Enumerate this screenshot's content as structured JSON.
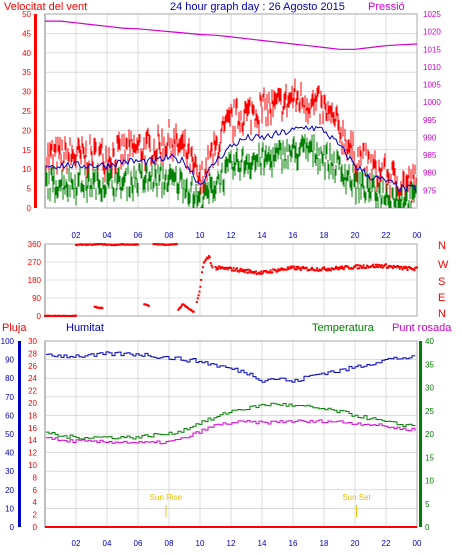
{
  "header": {
    "left_label": "Velocitat del vent",
    "title": "24 hour graph day : 26 Agosto 2015",
    "right_label": "Pressió"
  },
  "colors": {
    "red": "#ff0000",
    "blue": "#0000c0",
    "green": "#008000",
    "magenta": "#d000d0",
    "orange": "#e8c000",
    "frame": "#808080",
    "grid": "#c8c8c8"
  },
  "x_ticks": [
    "02",
    "04",
    "06",
    "08",
    "10",
    "12",
    "14",
    "16",
    "18",
    "20",
    "22",
    "00"
  ],
  "chart_data": [
    {
      "type": "line",
      "title": "24 hour graph day : 26 Agosto 2015",
      "xlabel": "",
      "ylabel": "Velocitat del vent",
      "x": [
        0,
        1,
        2,
        3,
        4,
        5,
        6,
        7,
        8,
        9,
        10,
        11,
        12,
        13,
        14,
        15,
        16,
        17,
        18,
        19,
        20,
        21,
        22,
        23,
        24
      ],
      "series": [
        {
          "name": "Velocitat del vent",
          "axis": "left",
          "color": "#ff0000",
          "values": [
            15,
            15,
            15,
            15,
            15,
            16,
            17,
            17,
            19,
            17,
            8,
            17,
            24,
            26,
            27,
            28,
            30,
            29,
            27,
            22,
            15,
            12,
            10,
            8,
            8
          ]
        },
        {
          "axis": "left",
          "color": "#0000c0",
          "values": [
            11,
            11,
            11,
            11,
            11,
            12,
            12,
            12,
            13,
            12,
            6,
            12,
            16,
            18,
            18,
            19,
            20,
            21,
            20,
            16,
            11,
            8,
            7,
            5,
            5
          ]
        },
        {
          "axis": "left",
          "color": "#008000",
          "values": [
            8,
            8,
            8,
            8,
            8,
            8,
            9,
            9,
            9,
            8,
            3,
            8,
            12,
            14,
            14,
            15,
            16,
            17,
            15,
            12,
            8,
            6,
            5,
            4,
            4
          ]
        },
        {
          "name": "Pressió",
          "axis": "right",
          "color": "#d000d0",
          "values": [
            1023,
            1023,
            1022.5,
            1022,
            1021.5,
            1021,
            1020.8,
            1020.4,
            1020,
            1019.6,
            1019.2,
            1019,
            1018.5,
            1018,
            1017.5,
            1017,
            1016.5,
            1016,
            1015.5,
            1015,
            1015,
            1015.5,
            1016,
            1016.3,
            1016.5
          ]
        }
      ],
      "left_axis": {
        "ylim": [
          0,
          50
        ],
        "ticks": [
          0,
          5,
          10,
          15,
          20,
          25,
          30,
          35,
          40,
          45,
          50
        ]
      },
      "right_axis": {
        "ylim": [
          970,
          1025
        ],
        "ticks": [
          975,
          980,
          985,
          990,
          995,
          1000,
          1005,
          1010,
          1015,
          1020,
          1025
        ]
      },
      "grid": true
    },
    {
      "type": "scatter",
      "xlabel": "",
      "ylabel": "",
      "compass_labels": [
        "N",
        "W",
        "S",
        "E",
        "N"
      ],
      "ylim": [
        0,
        360
      ],
      "ticks": [
        0,
        90,
        180,
        270,
        360
      ],
      "segments": [
        {
          "x": [
            0,
            0.5,
            1,
            1.5,
            2
          ],
          "values": [
            0,
            0,
            0,
            0,
            0
          ]
        },
        {
          "x": [
            2,
            2.5,
            3,
            3.5,
            4,
            4.5,
            5,
            5.5,
            6
          ],
          "values": [
            355,
            358,
            356,
            360,
            357,
            355,
            359,
            356,
            358
          ]
        },
        {
          "x": [
            3.2,
            3.7
          ],
          "values": [
            45,
            40
          ]
        },
        {
          "x": [
            6.4,
            6.7
          ],
          "values": [
            60,
            50
          ]
        },
        {
          "x": [
            7,
            7.5,
            8,
            8.5
          ],
          "values": [
            360,
            358,
            357,
            360
          ]
        },
        {
          "x": [
            8.6,
            8.9,
            9.3,
            9.6
          ],
          "values": [
            30,
            60,
            35,
            20
          ]
        },
        {
          "x": [
            9.8,
            10,
            10.2,
            10.4,
            10.6,
            10.8
          ],
          "values": [
            70,
            130,
            260,
            280,
            300,
            240
          ]
        },
        {
          "x": [
            11,
            12,
            13,
            14,
            15,
            16,
            17,
            18,
            19,
            20,
            21,
            22,
            23,
            24
          ],
          "values": [
            240,
            235,
            225,
            215,
            230,
            240,
            235,
            235,
            240,
            245,
            250,
            250,
            240,
            235
          ]
        }
      ],
      "color": "#ff0000",
      "grid": true
    },
    {
      "type": "line",
      "xlabel": "",
      "labels": {
        "pluja": "Pluja",
        "humitat": "Humitat",
        "temperatura": "Temperatura",
        "punt_rosada": "Punt rosada"
      },
      "x": [
        0,
        1,
        2,
        3,
        4,
        5,
        6,
        7,
        8,
        9,
        10,
        11,
        12,
        13,
        14,
        15,
        16,
        17,
        18,
        19,
        20,
        21,
        22,
        23,
        24
      ],
      "series": [
        {
          "name": "Humitat",
          "axis": "humidity",
          "color": "#0000c0",
          "values": [
            93,
            92,
            92,
            92,
            93,
            93,
            93,
            92,
            91,
            90,
            89,
            87,
            85,
            83,
            79,
            80,
            78,
            81,
            83,
            84,
            86,
            88,
            90,
            91,
            91
          ]
        },
        {
          "name": "Temperatura",
          "axis": "temperature",
          "color": "#008000",
          "values": [
            20.5,
            19.5,
            19.3,
            19.3,
            19.3,
            19.3,
            19.3,
            19.8,
            20,
            21,
            22.5,
            23.5,
            25,
            25.5,
            26.2,
            26.5,
            26,
            25.8,
            25.3,
            24.8,
            24,
            23.3,
            22.5,
            22,
            21.8
          ]
        },
        {
          "name": "Punt rosada",
          "axis": "temperature",
          "color": "#d000d0",
          "values": [
            19.5,
            18.5,
            18.5,
            18.3,
            18.3,
            18.3,
            18.1,
            18.1,
            18.3,
            19.1,
            20.6,
            21.9,
            22.4,
            22.6,
            22.4,
            22.6,
            22.8,
            22.6,
            22.8,
            22.6,
            22.3,
            22.1,
            21.6,
            21.1,
            20.9
          ]
        },
        {
          "name": "Pluja",
          "axis": "rain",
          "color": "#ff0000",
          "values": [
            0,
            0,
            0,
            0,
            0,
            0,
            0,
            0,
            0,
            0,
            0,
            0,
            0,
            0,
            0,
            0,
            0,
            0,
            0,
            0,
            0,
            0,
            0,
            0,
            0
          ]
        }
      ],
      "rain_axis": {
        "ylim": [
          0,
          30
        ],
        "ticks": [
          0,
          2,
          4,
          6,
          8,
          10,
          12,
          14,
          16,
          18,
          20,
          22,
          24,
          26,
          28,
          30
        ]
      },
      "humidity_axis": {
        "ylim": [
          0,
          100
        ],
        "ticks": [
          0,
          10,
          20,
          30,
          40,
          50,
          60,
          70,
          80,
          90,
          100
        ]
      },
      "temperature_axis": {
        "ylim": [
          0,
          40
        ],
        "ticks": [
          0,
          5,
          10,
          15,
          20,
          25,
          30,
          35,
          40
        ]
      },
      "annotations": [
        {
          "text": "Sun Rise",
          "x": 7.8
        },
        {
          "text": "Sun Set",
          "x": 20.1
        }
      ],
      "grid": true
    }
  ]
}
